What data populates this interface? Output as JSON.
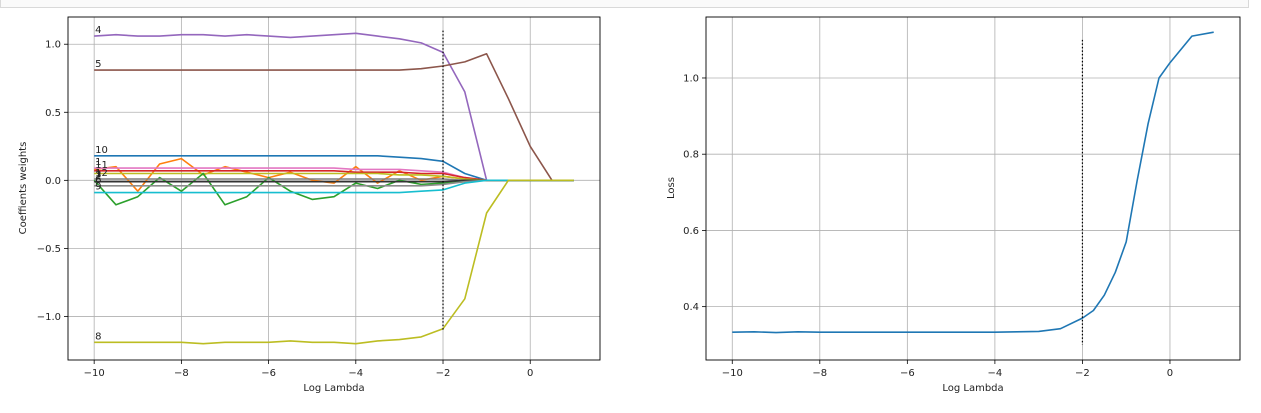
{
  "chart_data": [
    {
      "type": "line",
      "xlabel": "Log Lambda",
      "ylabel": "Coeffients weights",
      "xlim": [
        -10.6,
        1.6
      ],
      "ylim": [
        -1.32,
        1.2
      ],
      "xticks": [
        -10,
        -8,
        -6,
        -4,
        -2,
        0
      ],
      "yticks": [
        -1.0,
        -0.5,
        0.0,
        0.5,
        1.0
      ],
      "xtick_labels": [
        "−10",
        "−8",
        "−6",
        "−4",
        "−2",
        "0"
      ],
      "ytick_labels": [
        "−1.0",
        "−0.5",
        "0.0",
        "0.5",
        "1.0"
      ],
      "grid": true,
      "vline": {
        "x": -2,
        "y": [
          -1.1,
          1.1
        ],
        "style": "dotted"
      },
      "x": [
        -10,
        -9.5,
        -9,
        -8.5,
        -8,
        -7.5,
        -7,
        -6.5,
        -6,
        -5.5,
        -5,
        -4.5,
        -4,
        -3.5,
        -3,
        -2.5,
        -2,
        -1.5,
        -1,
        -0.5,
        0,
        0.5,
        1
      ],
      "series": [
        {
          "label": "4",
          "color": "#9467bd",
          "values": [
            1.06,
            1.07,
            1.06,
            1.06,
            1.07,
            1.07,
            1.06,
            1.07,
            1.06,
            1.05,
            1.06,
            1.07,
            1.08,
            1.06,
            1.04,
            1.01,
            0.94,
            0.65,
            0,
            0,
            0,
            0,
            0
          ]
        },
        {
          "label": "5",
          "color": "#8c564b",
          "values": [
            0.81,
            0.81,
            0.81,
            0.81,
            0.81,
            0.81,
            0.81,
            0.81,
            0.81,
            0.81,
            0.81,
            0.81,
            0.81,
            0.81,
            0.81,
            0.82,
            0.84,
            0.87,
            0.93,
            0.6,
            0.25,
            0,
            0
          ]
        },
        {
          "label": "10",
          "color": "#1f77b4",
          "values": [
            0.18,
            0.18,
            0.18,
            0.18,
            0.18,
            0.18,
            0.18,
            0.18,
            0.18,
            0.18,
            0.18,
            0.18,
            0.18,
            0.18,
            0.17,
            0.16,
            0.14,
            0.05,
            0,
            0,
            0,
            0,
            0
          ]
        },
        {
          "label": "",
          "color": "#ff7f0e",
          "values": [
            0.08,
            0.1,
            -0.08,
            0.12,
            0.16,
            0.04,
            0.1,
            0.06,
            0.02,
            0.06,
            0.0,
            -0.02,
            0.1,
            -0.02,
            0.07,
            0.0,
            0.03,
            0.01,
            0,
            0,
            0,
            0,
            0
          ]
        },
        {
          "label": "1",
          "color": "#e377c2",
          "values": [
            0.09,
            0.09,
            0.09,
            0.09,
            0.09,
            0.09,
            0.09,
            0.09,
            0.09,
            0.09,
            0.09,
            0.09,
            0.08,
            0.08,
            0.08,
            0.07,
            0.06,
            0.02,
            0,
            0,
            0,
            0,
            0
          ]
        },
        {
          "label": "11",
          "color": "#d62728",
          "values": [
            0.07,
            0.07,
            0.07,
            0.07,
            0.07,
            0.07,
            0.07,
            0.07,
            0.07,
            0.07,
            0.07,
            0.07,
            0.06,
            0.06,
            0.06,
            0.05,
            0.05,
            0.02,
            0,
            0,
            0,
            0,
            0
          ]
        },
        {
          "label": "",
          "color": "#bcbd22",
          "values": [
            0.05,
            0.05,
            0.05,
            0.05,
            0.05,
            0.05,
            0.05,
            0.05,
            0.05,
            0.05,
            0.05,
            0.05,
            0.05,
            0.05,
            0.04,
            0.04,
            0.03,
            0.01,
            0,
            0,
            0,
            0,
            0
          ]
        },
        {
          "label": "3",
          "color": "#2ca02c",
          "values": [
            0.0,
            -0.18,
            -0.12,
            0.02,
            -0.08,
            0.05,
            -0.18,
            -0.12,
            0.02,
            -0.08,
            -0.14,
            -0.12,
            -0.02,
            -0.06,
            0.0,
            -0.03,
            -0.02,
            -0.01,
            0,
            0,
            0,
            0,
            0
          ]
        },
        {
          "label": "12",
          "color": "#7f7f7f",
          "values": [
            0.01,
            0.01,
            0.01,
            0.01,
            0.01,
            0.01,
            0.01,
            0.01,
            0.01,
            0.01,
            0.01,
            0.01,
            0.01,
            0.01,
            0.01,
            0.01,
            0.01,
            0.0,
            0,
            0,
            0,
            0,
            0
          ]
        },
        {
          "label": "2",
          "color": "#333333",
          "values": [
            -0.01,
            -0.01,
            -0.01,
            -0.01,
            -0.01,
            -0.01,
            -0.01,
            -0.01,
            -0.01,
            -0.01,
            -0.01,
            -0.01,
            -0.01,
            -0.01,
            -0.01,
            -0.01,
            -0.01,
            0.0,
            0,
            0,
            0,
            0,
            0
          ]
        },
        {
          "label": "6",
          "color": "#8c8c8c",
          "values": [
            -0.04,
            -0.04,
            -0.04,
            -0.04,
            -0.04,
            -0.04,
            -0.04,
            -0.04,
            -0.04,
            -0.04,
            -0.04,
            -0.04,
            -0.04,
            -0.04,
            -0.04,
            -0.04,
            -0.03,
            -0.01,
            0,
            0,
            0,
            0,
            0
          ]
        },
        {
          "label": "9",
          "color": "#17becf",
          "values": [
            -0.09,
            -0.09,
            -0.09,
            -0.09,
            -0.09,
            -0.09,
            -0.09,
            -0.09,
            -0.09,
            -0.09,
            -0.09,
            -0.09,
            -0.09,
            -0.09,
            -0.09,
            -0.08,
            -0.07,
            -0.02,
            0,
            0,
            0,
            0,
            0
          ]
        },
        {
          "label": "8",
          "color": "#bcbd22",
          "values": [
            -1.19,
            -1.19,
            -1.19,
            -1.19,
            -1.19,
            -1.2,
            -1.19,
            -1.19,
            -1.19,
            -1.18,
            -1.19,
            -1.19,
            -1.2,
            -1.18,
            -1.17,
            -1.15,
            -1.09,
            -0.87,
            -0.24,
            0,
            0,
            0,
            0
          ]
        }
      ]
    },
    {
      "type": "line",
      "xlabel": "Log Lambda",
      "ylabel": "Loss",
      "xlim": [
        -10.6,
        1.6
      ],
      "ylim": [
        0.26,
        1.16
      ],
      "xticks": [
        -10,
        -8,
        -6,
        -4,
        -2,
        0
      ],
      "yticks": [
        0.4,
        0.6,
        0.8,
        1.0
      ],
      "xtick_labels": [
        "−10",
        "−8",
        "−6",
        "−4",
        "−2",
        "0"
      ],
      "ytick_labels": [
        "0.4",
        "0.6",
        "0.8",
        "1.0"
      ],
      "grid": true,
      "vline": {
        "x": -2,
        "y": [
          0.3,
          1.1
        ],
        "style": "dotted"
      },
      "x": [
        -10,
        -9.5,
        -9,
        -8.5,
        -8,
        -7.5,
        -7,
        -6.5,
        -6,
        -5.5,
        -5,
        -4.5,
        -4,
        -3.5,
        -3,
        -2.5,
        -2,
        -1.75,
        -1.5,
        -1.25,
        -1,
        -0.75,
        -0.5,
        -0.25,
        0,
        0.5,
        1
      ],
      "series": [
        {
          "color": "#1f77b4",
          "values": [
            0.333,
            0.334,
            0.332,
            0.334,
            0.333,
            0.333,
            0.333,
            0.333,
            0.333,
            0.333,
            0.333,
            0.333,
            0.333,
            0.334,
            0.335,
            0.342,
            0.37,
            0.39,
            0.43,
            0.49,
            0.57,
            0.73,
            0.88,
            1.0,
            1.04,
            1.11,
            1.12
          ]
        }
      ]
    }
  ]
}
